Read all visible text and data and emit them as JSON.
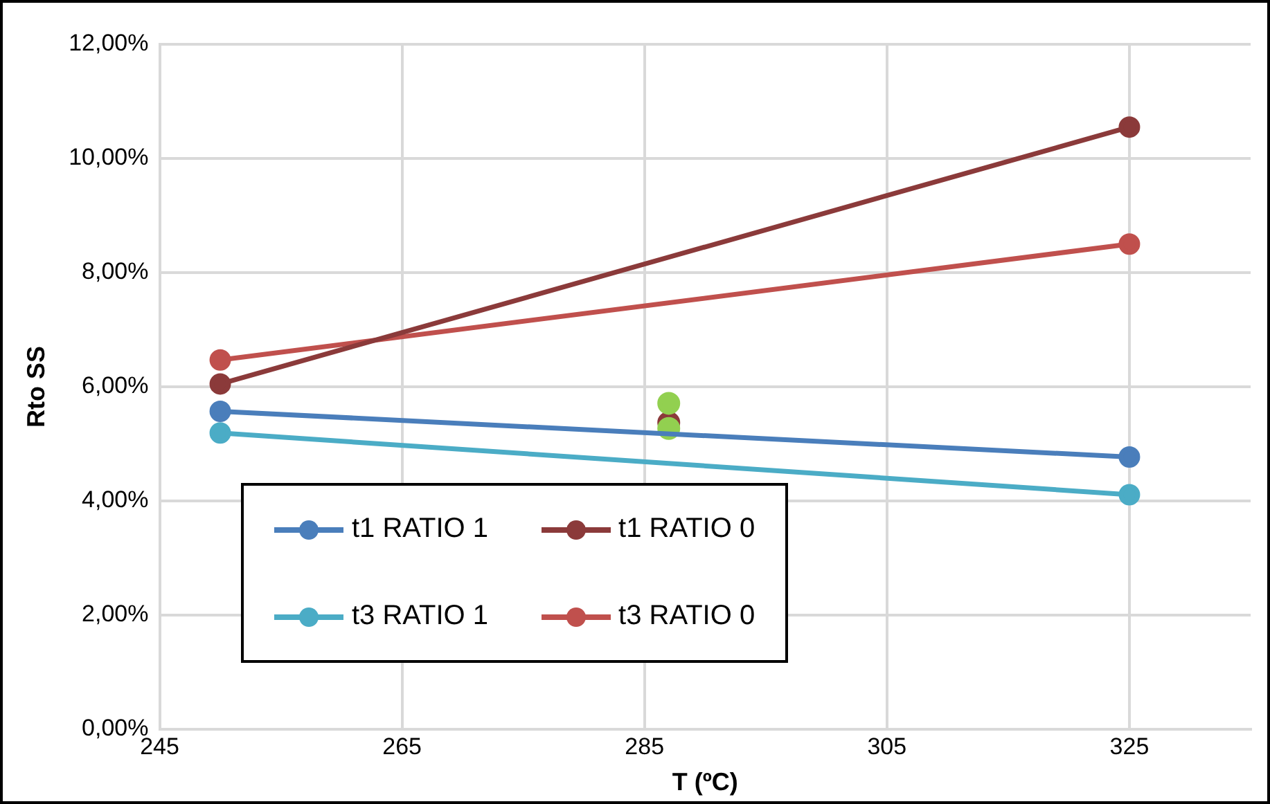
{
  "chart_data": {
    "type": "line",
    "xlabel": "T (ºC)",
    "ylabel": "Rto SS",
    "xlim": [
      245,
      335
    ],
    "xticks": [
      245,
      265,
      285,
      305,
      325
    ],
    "ylim": [
      0,
      12
    ],
    "yticks": [
      {
        "value": 0,
        "label": "0,00%"
      },
      {
        "value": 2,
        "label": "2,00%"
      },
      {
        "value": 4,
        "label": "4,00%"
      },
      {
        "value": 6,
        "label": "6,00%"
      },
      {
        "value": 8,
        "label": "8,00%"
      },
      {
        "value": 10,
        "label": "10,00%"
      },
      {
        "value": 12,
        "label": "12,00%"
      }
    ],
    "grid": true,
    "legend": "bottom left",
    "marker": "circle",
    "line_style": "solid",
    "series": [
      {
        "name": "t1 RATIO 1",
        "color": "#4a7ebb",
        "x": [
          250,
          325
        ],
        "values": [
          5.57,
          4.77
        ]
      },
      {
        "name": "t1 RATIO 0",
        "color": "#8b3a3a",
        "x": [
          250,
          325
        ],
        "values": [
          6.05,
          10.55
        ]
      },
      {
        "name": "t3 RATIO 1",
        "color": "#4bacc6",
        "x": [
          250,
          325
        ],
        "values": [
          5.19,
          4.11
        ]
      },
      {
        "name": "t3 RATIO 0",
        "color": "#c0504d",
        "x": [
          250,
          325
        ],
        "values": [
          6.47,
          8.5
        ]
      },
      {
        "type": "scatter",
        "color": "#92d050",
        "x": [
          287,
          287
        ],
        "values": [
          5.71,
          5.27
        ]
      },
      {
        "type": "scatter",
        "color": "#8b3a3a",
        "x": [
          287
        ],
        "values": [
          5.37
        ]
      }
    ]
  }
}
